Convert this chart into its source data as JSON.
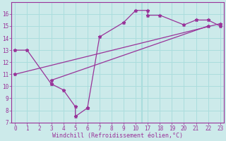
{
  "xlabel": "Windchill (Refroidissement éolien,°C)",
  "bg_color": "#cceaea",
  "line_color": "#993399",
  "grid_color": "#aadddd",
  "spine_color": "#993399",
  "xlim": [
    0,
    23
  ],
  "ylim": [
    7,
    17
  ],
  "xticks_pos": [
    0,
    1,
    2,
    3,
    4,
    5,
    6,
    7,
    8,
    9,
    10,
    17,
    18,
    19,
    20,
    21,
    22,
    23
  ],
  "xtick_labels": [
    "0",
    "1",
    "2",
    "3",
    "4",
    "5",
    "6",
    "7",
    "8",
    "9",
    "10",
    "17",
    "18",
    "19",
    "20",
    "21",
    "22",
    "23"
  ],
  "yticks": [
    7,
    8,
    9,
    10,
    11,
    12,
    13,
    14,
    15,
    16
  ],
  "curve1_x": [
    0,
    1,
    3,
    3,
    4,
    5,
    5,
    6,
    6,
    7,
    9,
    10,
    17,
    17,
    18,
    20,
    21,
    22,
    23
  ],
  "curve1_y": [
    13.0,
    13.0,
    10.2,
    10.2,
    9.7,
    8.3,
    7.5,
    8.2,
    8.2,
    14.1,
    15.3,
    16.3,
    16.3,
    15.9,
    15.9,
    15.1,
    15.5,
    15.5,
    15.0
  ],
  "curve2_x": [
    3,
    22
  ],
  "curve2_y": [
    10.5,
    15.0
  ],
  "curve3_x": [
    0,
    23
  ],
  "curve3_y": [
    11.0,
    15.2
  ],
  "marker": "*",
  "markersize": 3.5,
  "linewidth": 0.9,
  "tick_fontsize": 5.5,
  "xlabel_fontsize": 6.0
}
